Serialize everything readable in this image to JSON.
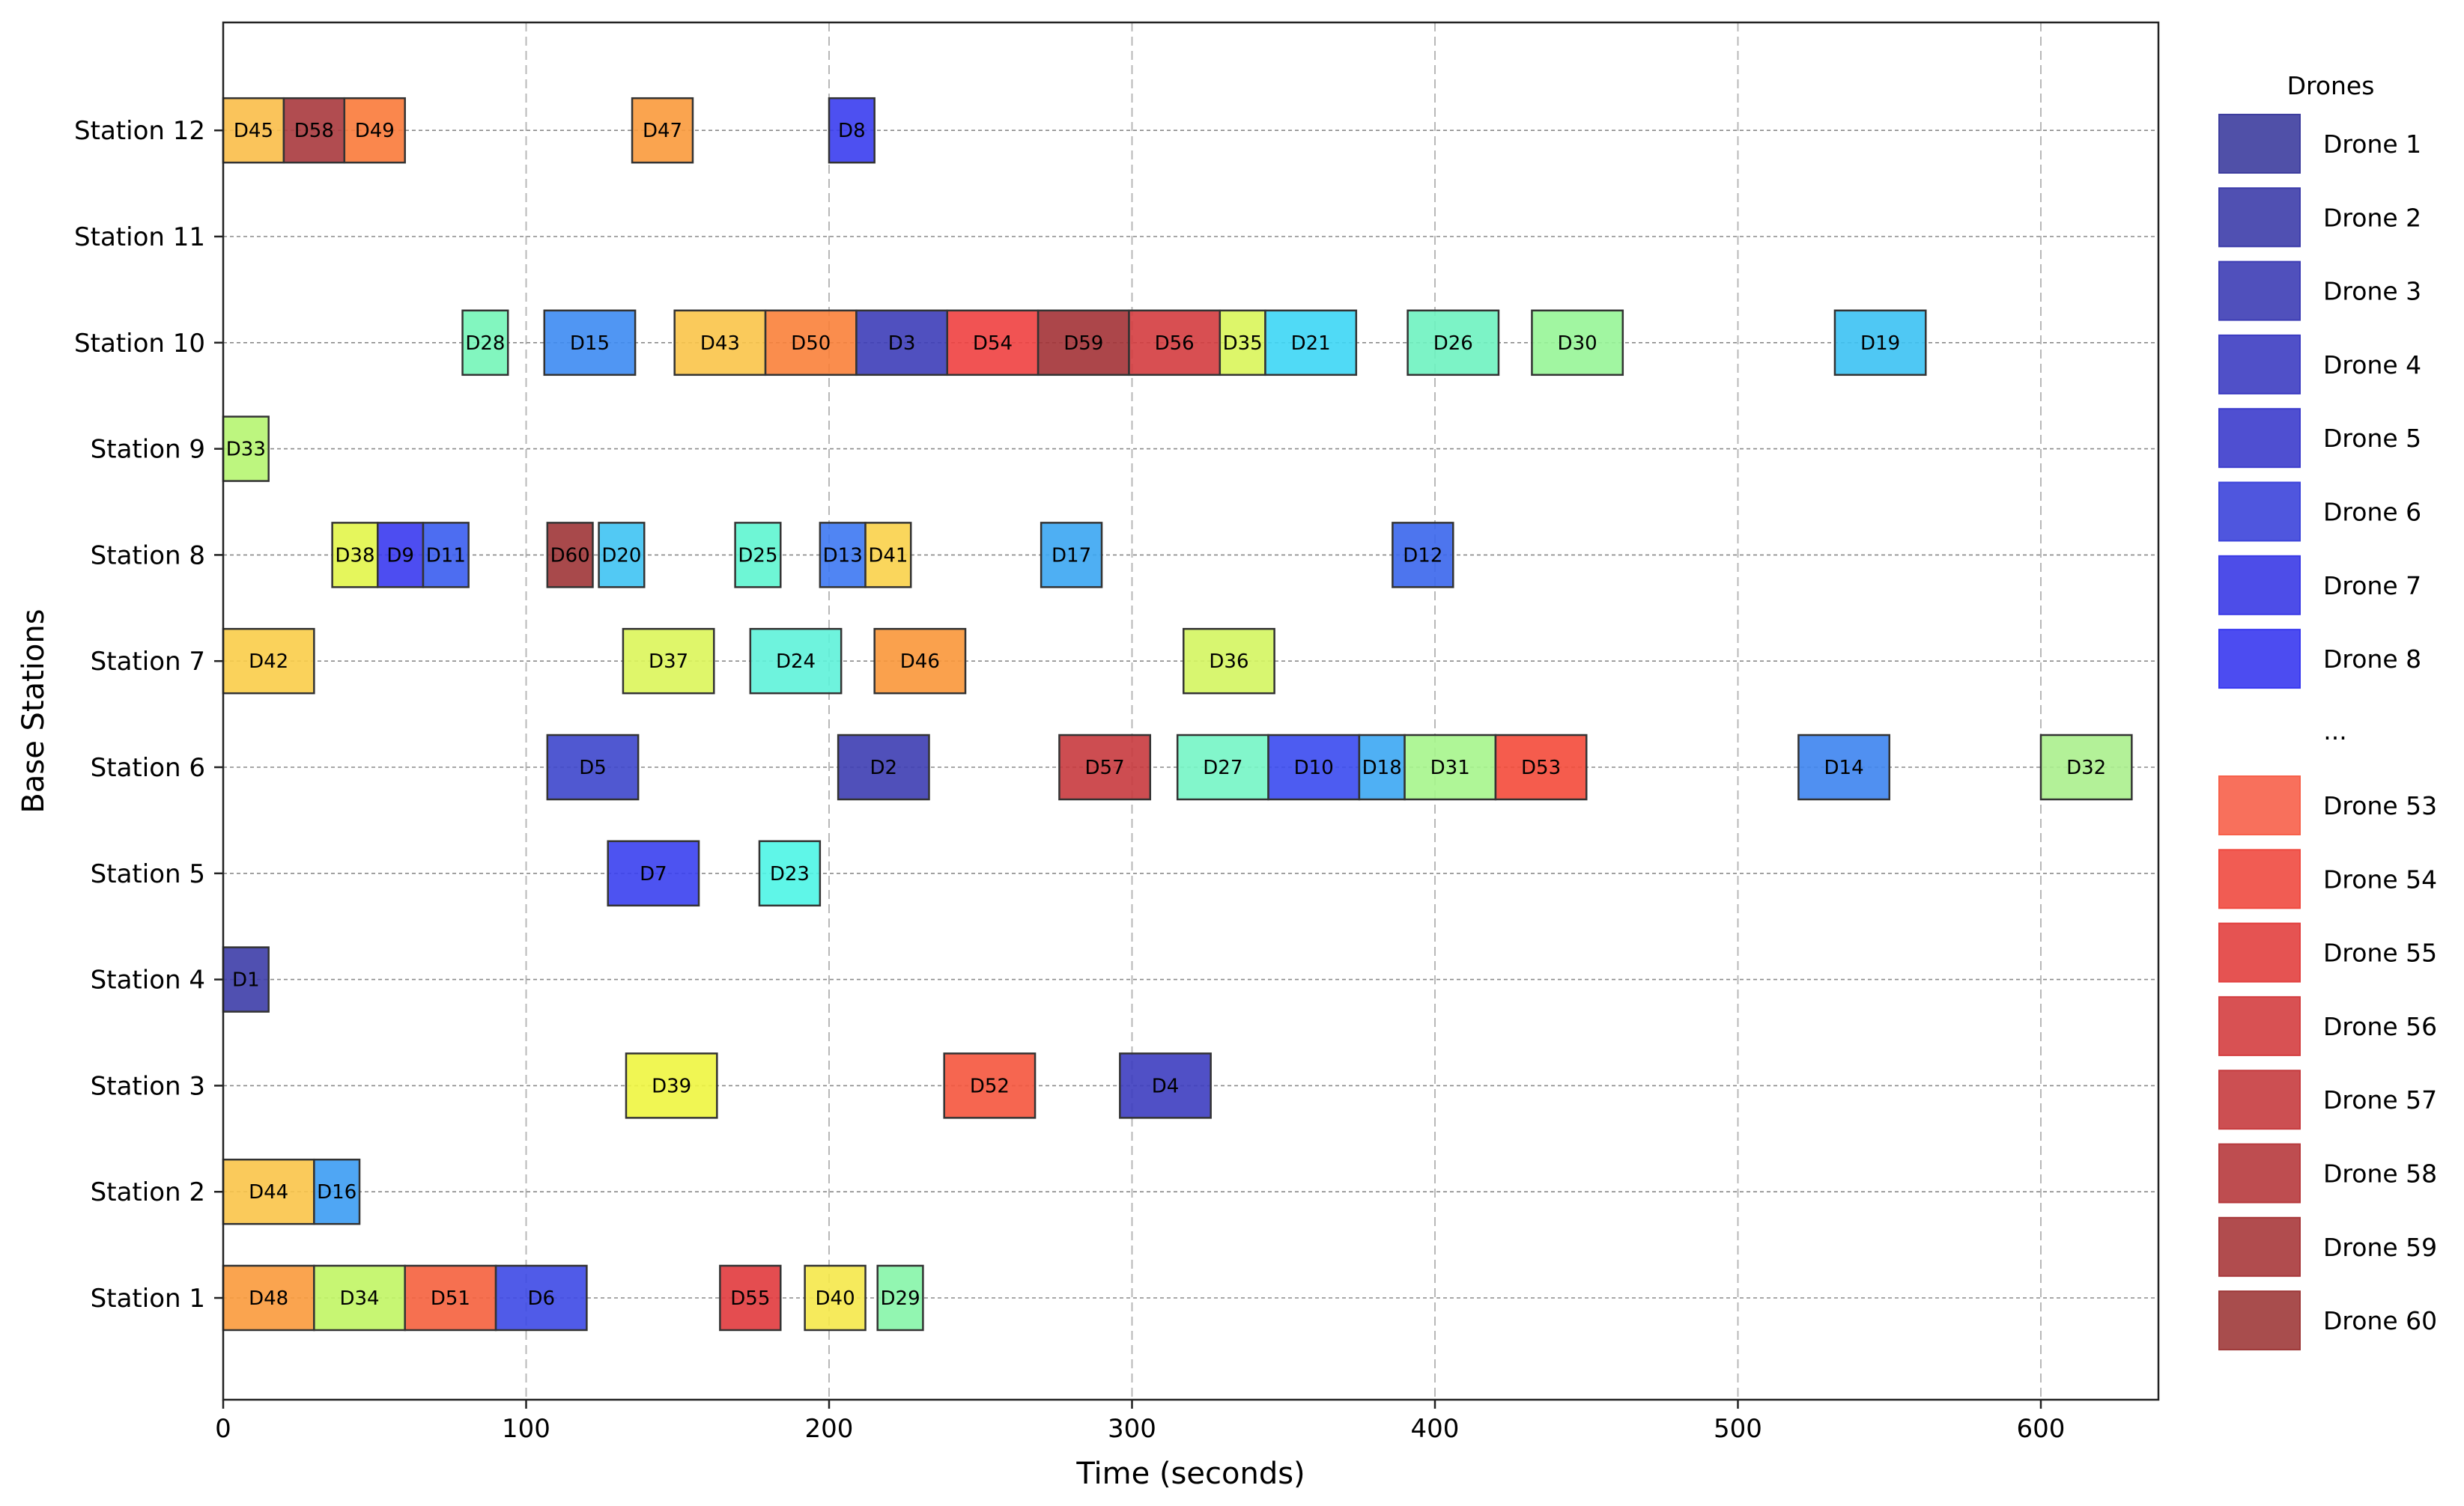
{
  "chart_data": {
    "type": "gantt",
    "title": "",
    "xlabel": "Time (seconds)",
    "ylabel": "Base Stations",
    "xlim": [
      0,
      640
    ],
    "xticks": [
      0,
      100,
      200,
      300,
      400,
      500,
      600
    ],
    "grid": true,
    "stations": [
      "Station 1",
      "Station 2",
      "Station 3",
      "Station 4",
      "Station 5",
      "Station 6",
      "Station 7",
      "Station 8",
      "Station 9",
      "Station 10",
      "Station 11",
      "Station 12"
    ],
    "tasks": [
      {
        "label": "D45",
        "station": 12,
        "start": 0,
        "end": 20,
        "color": "#f9be49"
      },
      {
        "label": "D58",
        "station": 12,
        "start": 20,
        "end": 40,
        "color": "#a8393d"
      },
      {
        "label": "D49",
        "station": 12,
        "start": 40,
        "end": 60,
        "color": "#f97a3a"
      },
      {
        "label": "D47",
        "station": 12,
        "start": 135,
        "end": 155,
        "color": "#f99a3c"
      },
      {
        "label": "D8",
        "station": 12,
        "start": 200,
        "end": 215,
        "color": "#3a3df0"
      },
      {
        "label": "D28",
        "station": 10,
        "start": 79,
        "end": 94,
        "color": "#74f5b8"
      },
      {
        "label": "D15",
        "station": 10,
        "start": 106,
        "end": 136,
        "color": "#3d8bf2"
      },
      {
        "label": "D43",
        "station": 10,
        "start": 149,
        "end": 179,
        "color": "#f9c449"
      },
      {
        "label": "D50",
        "station": 10,
        "start": 179,
        "end": 209,
        "color": "#f9813a"
      },
      {
        "label": "D3",
        "station": 10,
        "start": 209,
        "end": 239,
        "color": "#3d3db8"
      },
      {
        "label": "D54",
        "station": 10,
        "start": 239,
        "end": 269,
        "color": "#f04040"
      },
      {
        "label": "D59",
        "station": 10,
        "start": 269,
        "end": 299,
        "color": "#a33236"
      },
      {
        "label": "D56",
        "station": 10,
        "start": 299,
        "end": 329,
        "color": "#d43c3f"
      },
      {
        "label": "D35",
        "station": 10,
        "start": 329,
        "end": 344,
        "color": "#d9f55a"
      },
      {
        "label": "D21",
        "station": 10,
        "start": 344,
        "end": 374,
        "color": "#3dd6f5"
      },
      {
        "label": "D26",
        "station": 10,
        "start": 391,
        "end": 421,
        "color": "#6ef2c0"
      },
      {
        "label": "D30",
        "station": 10,
        "start": 432,
        "end": 462,
        "color": "#97f597"
      },
      {
        "label": "D19",
        "station": 10,
        "start": 532,
        "end": 562,
        "color": "#3cc2f3"
      },
      {
        "label": "D33",
        "station": 9,
        "start": 0,
        "end": 15,
        "color": "#b6f571"
      },
      {
        "label": "D38",
        "station": 8,
        "start": 36,
        "end": 51,
        "color": "#e2f54a"
      },
      {
        "label": "D9",
        "station": 8,
        "start": 51,
        "end": 66,
        "color": "#3a3af0"
      },
      {
        "label": "D11",
        "station": 8,
        "start": 66,
        "end": 81,
        "color": "#3a5df0"
      },
      {
        "label": "D60",
        "station": 8,
        "start": 107,
        "end": 122,
        "color": "#9e3537"
      },
      {
        "label": "D20",
        "station": 8,
        "start": 124,
        "end": 139,
        "color": "#3fc3f3"
      },
      {
        "label": "D25",
        "station": 8,
        "start": 169,
        "end": 184,
        "color": "#5ef5d0"
      },
      {
        "label": "D13",
        "station": 8,
        "start": 197,
        "end": 212,
        "color": "#3d78f2"
      },
      {
        "label": "D41",
        "station": 8,
        "start": 212,
        "end": 227,
        "color": "#f9d14a"
      },
      {
        "label": "D17",
        "station": 8,
        "start": 270,
        "end": 290,
        "color": "#3ba6f2"
      },
      {
        "label": "D12",
        "station": 8,
        "start": 386,
        "end": 406,
        "color": "#3a66ec"
      },
      {
        "label": "D42",
        "station": 7,
        "start": 0,
        "end": 30,
        "color": "#f9cd49"
      },
      {
        "label": "D37",
        "station": 7,
        "start": 132,
        "end": 162,
        "color": "#dcf55a"
      },
      {
        "label": "D24",
        "station": 7,
        "start": 174,
        "end": 204,
        "color": "#5ef2d9"
      },
      {
        "label": "D46",
        "station": 7,
        "start": 215,
        "end": 245,
        "color": "#f9973a"
      },
      {
        "label": "D36",
        "station": 7,
        "start": 317,
        "end": 347,
        "color": "#d4f560"
      },
      {
        "label": "D5",
        "station": 6,
        "start": 107,
        "end": 137,
        "color": "#3d46cc"
      },
      {
        "label": "D2",
        "station": 6,
        "start": 203,
        "end": 233,
        "color": "#3d3db3"
      },
      {
        "label": "D57",
        "station": 6,
        "start": 276,
        "end": 306,
        "color": "#c83a3e"
      },
      {
        "label": "D27",
        "station": 6,
        "start": 315,
        "end": 345,
        "color": "#74f5c5"
      },
      {
        "label": "D10",
        "station": 6,
        "start": 345,
        "end": 375,
        "color": "#3a4af0"
      },
      {
        "label": "D18",
        "station": 6,
        "start": 375,
        "end": 390,
        "color": "#3ca7f3"
      },
      {
        "label": "D31",
        "station": 6,
        "start": 390,
        "end": 420,
        "color": "#a6f58c"
      },
      {
        "label": "D53",
        "station": 6,
        "start": 420,
        "end": 450,
        "color": "#f44a3a"
      },
      {
        "label": "D14",
        "station": 6,
        "start": 520,
        "end": 550,
        "color": "#3d84f0"
      },
      {
        "label": "D32",
        "station": 6,
        "start": 600,
        "end": 630,
        "color": "#abef8d"
      },
      {
        "label": "D7",
        "station": 5,
        "start": 127,
        "end": 157,
        "color": "#3a40f0"
      },
      {
        "label": "D23",
        "station": 5,
        "start": 177,
        "end": 197,
        "color": "#4ef5e6"
      },
      {
        "label": "D1",
        "station": 4,
        "start": 0,
        "end": 15,
        "color": "#3d3da8"
      },
      {
        "label": "D39",
        "station": 3,
        "start": 133,
        "end": 163,
        "color": "#eef540"
      },
      {
        "label": "D52",
        "station": 3,
        "start": 238,
        "end": 268,
        "color": "#f5553d"
      },
      {
        "label": "D4",
        "station": 3,
        "start": 296,
        "end": 326,
        "color": "#3d3dc0"
      },
      {
        "label": "D44",
        "station": 2,
        "start": 0,
        "end": 30,
        "color": "#f9c449"
      },
      {
        "label": "D16",
        "station": 2,
        "start": 30,
        "end": 45,
        "color": "#3c9cf3"
      },
      {
        "label": "D48",
        "station": 1,
        "start": 0,
        "end": 30,
        "color": "#f99a3c"
      },
      {
        "label": "D34",
        "station": 1,
        "start": 30,
        "end": 60,
        "color": "#c1f564"
      },
      {
        "label": "D51",
        "station": 1,
        "start": 60,
        "end": 90,
        "color": "#f5613d"
      },
      {
        "label": "D6",
        "station": 1,
        "start": 90,
        "end": 120,
        "color": "#3d49e6"
      },
      {
        "label": "D55",
        "station": 1,
        "start": 164,
        "end": 184,
        "color": "#e13a3d"
      },
      {
        "label": "D40",
        "station": 1,
        "start": 192,
        "end": 212,
        "color": "#f5e84a"
      },
      {
        "label": "D29",
        "station": 1,
        "start": 216,
        "end": 231,
        "color": "#86f5a8"
      }
    ],
    "legend": {
      "title": "Drones",
      "position": "right",
      "ellipsis": "...",
      "entries": [
        {
          "label": "Drone 1",
          "color": "#3d3d9e"
        },
        {
          "label": "Drone 2",
          "color": "#3d3daa"
        },
        {
          "label": "Drone 3",
          "color": "#3d3db5"
        },
        {
          "label": "Drone 4",
          "color": "#3d3dc2"
        },
        {
          "label": "Drone 5",
          "color": "#3c3ccc"
        },
        {
          "label": "Drone 6",
          "color": "#3c44da"
        },
        {
          "label": "Drone 7",
          "color": "#3a3ae6"
        },
        {
          "label": "Drone 8",
          "color": "#3838f0"
        },
        {
          "label": "Drone 53",
          "color": "#f7604a"
        },
        {
          "label": "Drone 54",
          "color": "#f04a40"
        },
        {
          "label": "Drone 55",
          "color": "#e2403f"
        },
        {
          "label": "Drone 56",
          "color": "#d43e40"
        },
        {
          "label": "Drone 57",
          "color": "#c63c3f"
        },
        {
          "label": "Drone 58",
          "color": "#b73a3d"
        },
        {
          "label": "Drone 59",
          "color": "#a8383b"
        },
        {
          "label": "Drone 60",
          "color": "#9e3a3a"
        }
      ]
    }
  }
}
